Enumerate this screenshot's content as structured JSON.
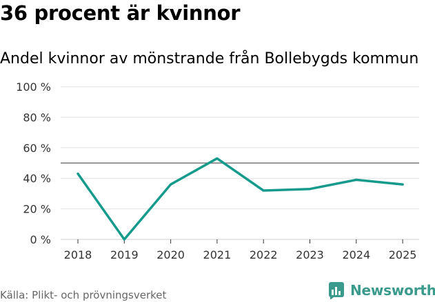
{
  "title": "36 procent är kvinnor",
  "subtitle": "Andel kvinnor av mönstrande från Bollebygds kommun",
  "source": "Källa: Plikt- och prövningsverket",
  "brand": {
    "name": "Newsworthy",
    "icon": "newsworthy-logo-icon",
    "color": "#3a9a8c"
  },
  "chart_data": {
    "type": "line",
    "categories": [
      "2018",
      "2019",
      "2020",
      "2021",
      "2022",
      "2023",
      "2024",
      "2025"
    ],
    "series": [
      {
        "name": "Andel kvinnor",
        "values": [
          43,
          0,
          36,
          53,
          32,
          33,
          39,
          36
        ],
        "color": "#159a8c"
      }
    ],
    "reference_line": 50,
    "ylim": [
      0,
      100
    ],
    "yticks": [
      0,
      20,
      40,
      60,
      80,
      100
    ],
    "ytick_labels": [
      "0 %",
      "20 %",
      "40 %",
      "60 %",
      "80 %",
      "100 %"
    ],
    "xlabel": "",
    "ylabel": "",
    "grid": true
  }
}
